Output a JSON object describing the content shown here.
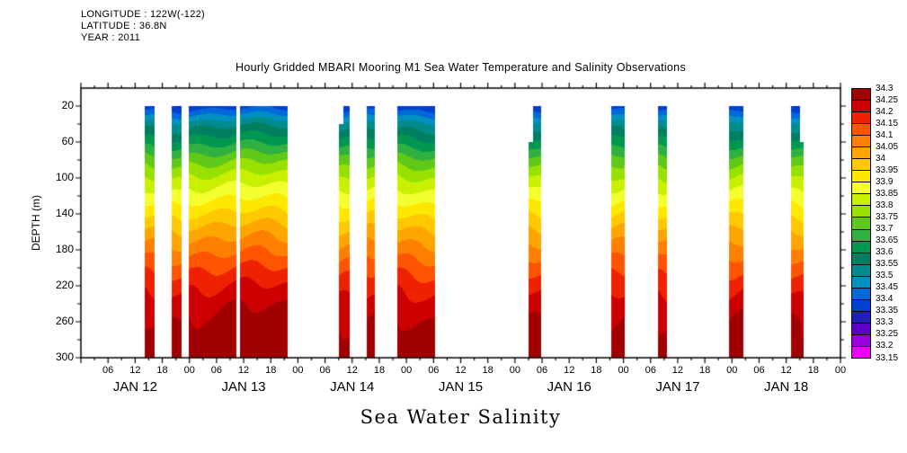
{
  "header": {
    "longitude": "LONGITUDE : 122W(-122)",
    "latitude": "LATITUDE : 36.8N",
    "year": "YEAR : 2011"
  },
  "title": "Hourly Gridded MBARI Mooring M1 Sea Water Temperature and Salinity Observations",
  "footer": "Sea Water Salinity",
  "chart_data": {
    "type": "heatmap",
    "title": "Hourly Gridded MBARI Mooring M1 Sea Water Temperature and Salinity Observations",
    "xlabel": "Sea Water Salinity",
    "ylabel": "DEPTH (m)",
    "x_axis": {
      "hours_span": 168,
      "hour_tick_labels": [
        "06",
        "12",
        "18",
        "00"
      ],
      "day_labels": [
        "JAN 12",
        "JAN 13",
        "JAN 14",
        "JAN 15",
        "JAN 16",
        "JAN 17",
        "JAN 18"
      ]
    },
    "y_axis": {
      "ticks": [
        20,
        60,
        100,
        140,
        180,
        220,
        260,
        300
      ],
      "min": 0,
      "max": 300,
      "minor_step": 20
    },
    "colorbar": {
      "labels": [
        "34.3",
        "34.25",
        "34.2",
        "34.15",
        "34.1",
        "34.05",
        "34",
        "33.95",
        "33.9",
        "33.85",
        "33.8",
        "33.75",
        "33.7",
        "33.65",
        "33.6",
        "33.55",
        "33.5",
        "33.45",
        "33.4",
        "33.35",
        "33.3",
        "33.25",
        "33.2",
        "33.15"
      ],
      "cells": [
        {
          "min": 34.25,
          "max": 34.3,
          "color": "#A00000"
        },
        {
          "min": 34.2,
          "max": 34.25,
          "color": "#CC0000"
        },
        {
          "min": 34.15,
          "max": 34.2,
          "color": "#EE2200"
        },
        {
          "min": 34.1,
          "max": 34.15,
          "color": "#FF5500"
        },
        {
          "min": 34.05,
          "max": 34.1,
          "color": "#FF8000"
        },
        {
          "min": 34.0,
          "max": 34.05,
          "color": "#FFA500"
        },
        {
          "min": 33.95,
          "max": 34.0,
          "color": "#FFC800"
        },
        {
          "min": 33.9,
          "max": 33.95,
          "color": "#FFE800"
        },
        {
          "min": 33.85,
          "max": 33.9,
          "color": "#F4FF30"
        },
        {
          "min": 33.8,
          "max": 33.85,
          "color": "#C8F000"
        },
        {
          "min": 33.75,
          "max": 33.8,
          "color": "#98E000"
        },
        {
          "min": 33.7,
          "max": 33.75,
          "color": "#60C818"
        },
        {
          "min": 33.65,
          "max": 33.7,
          "color": "#30B040"
        },
        {
          "min": 33.6,
          "max": 33.65,
          "color": "#009850"
        },
        {
          "min": 33.55,
          "max": 33.6,
          "color": "#008060"
        },
        {
          "min": 33.5,
          "max": 33.55,
          "color": "#008C8C"
        },
        {
          "min": 33.45,
          "max": 33.5,
          "color": "#0090C0"
        },
        {
          "min": 33.4,
          "max": 33.45,
          "color": "#0068D8"
        },
        {
          "min": 33.35,
          "max": 33.4,
          "color": "#0040D0"
        },
        {
          "min": 33.3,
          "max": 33.35,
          "color": "#2020B8"
        },
        {
          "min": 33.25,
          "max": 33.3,
          "color": "#5A00C8"
        },
        {
          "min": 33.2,
          "max": 33.25,
          "color": "#9900DD"
        },
        {
          "min": 33.15,
          "max": 33.2,
          "color": "#EE00FF"
        }
      ]
    },
    "profile": {
      "depth": [
        20,
        40,
        60,
        80,
        100,
        120,
        140,
        160,
        180,
        200,
        220,
        240,
        260,
        280,
        300
      ],
      "salinity": [
        33.36,
        33.52,
        33.62,
        33.72,
        33.8,
        33.87,
        33.94,
        34.01,
        34.07,
        34.13,
        34.18,
        34.22,
        34.25,
        34.27,
        34.29
      ]
    },
    "strips": [
      {
        "start_hour": 14.2,
        "end_hour": 16.3,
        "top_depth": 20
      },
      {
        "start_hour": 20.0,
        "end_hour": 22.3,
        "top_depth": 20
      },
      {
        "start_hour": 23.8,
        "end_hour": 34.3,
        "top_depth": 20,
        "offset": 0.02
      },
      {
        "start_hour": 35.2,
        "end_hour": 45.8,
        "top_depth": 20,
        "offset": 0.02
      },
      {
        "start_hour": 57.0,
        "end_hour": 58.0,
        "top_depth": 40
      },
      {
        "start_hour": 58.0,
        "end_hour": 59.4,
        "top_depth": 20
      },
      {
        "start_hour": 63.2,
        "end_hour": 65.1,
        "top_depth": 20
      },
      {
        "start_hour": 70.0,
        "end_hour": 78.3,
        "top_depth": 20
      },
      {
        "start_hour": 99.0,
        "end_hour": 100.1,
        "top_depth": 60
      },
      {
        "start_hour": 100.1,
        "end_hour": 101.7,
        "top_depth": 20
      },
      {
        "start_hour": 117.4,
        "end_hour": 120.3,
        "top_depth": 20
      },
      {
        "start_hour": 127.6,
        "end_hour": 129.7,
        "top_depth": 20
      },
      {
        "start_hour": 143.4,
        "end_hour": 146.5,
        "top_depth": 20
      },
      {
        "start_hour": 157.0,
        "end_hour": 159.1,
        "top_depth": 20
      },
      {
        "start_hour": 159.1,
        "end_hour": 159.9,
        "top_depth": 60
      }
    ]
  }
}
